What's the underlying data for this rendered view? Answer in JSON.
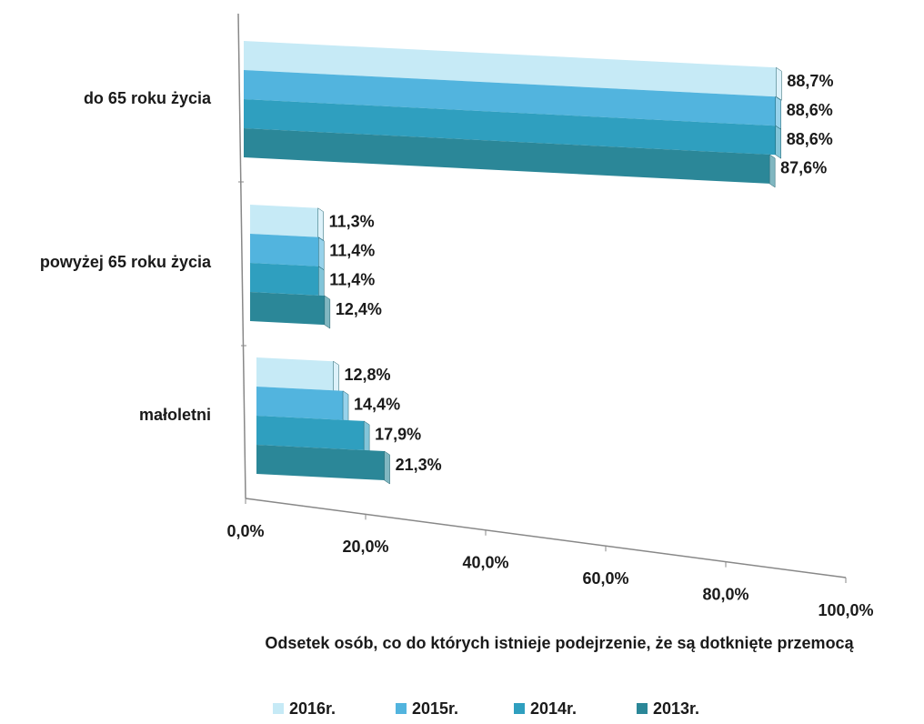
{
  "chart_data": {
    "type": "bar3d",
    "categories": [
      "do 65 roku życia",
      "powyżej 65 roku życia",
      "małoletni"
    ],
    "series": [
      {
        "name": "2016r.",
        "color": "#c6eaf6",
        "values": [
          88.7,
          11.3,
          12.8
        ],
        "value_labels": [
          "88,7%",
          "11,3%",
          "12,8%"
        ]
      },
      {
        "name": "2015r.",
        "color": "#52b4de",
        "values": [
          88.6,
          11.4,
          14.4
        ],
        "value_labels": [
          "88,6%",
          "11,4%",
          "14,4%"
        ]
      },
      {
        "name": "2014r.",
        "color": "#2f9fbf",
        "values": [
          88.6,
          11.4,
          17.9
        ],
        "value_labels": [
          "88,6%",
          "11,4%",
          "17,9%"
        ]
      },
      {
        "name": "2013r.",
        "color": "#2b8798",
        "values": [
          87.6,
          12.4,
          21.3
        ],
        "value_labels": [
          "87,6%",
          "12,4%",
          "21,3%"
        ]
      }
    ],
    "xlim": [
      0,
      100
    ],
    "xticks": [
      {
        "value": 0,
        "label": "0,0%"
      },
      {
        "value": 20,
        "label": "20,0%"
      },
      {
        "value": 40,
        "label": "40,0%"
      },
      {
        "value": 60,
        "label": "60,0%"
      },
      {
        "value": 80,
        "label": "80,0%"
      },
      {
        "value": 100,
        "label": "100,0%"
      }
    ],
    "x_label": "Odsetek osób, co do których istnieje podejrzenie, że są dotknięte przemocą"
  }
}
